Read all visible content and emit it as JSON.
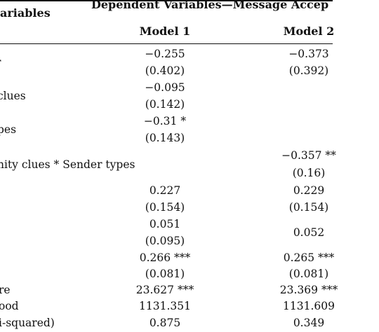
{
  "header": {
    "variables": "ariables",
    "dependent": "Dependent Variables—Message Accep",
    "model1": "Model 1",
    "model2": "Model 2"
  },
  "rows": [
    {
      "label": "",
      "m1": "−0.255",
      "m2": "−0.373"
    },
    {
      "label": "",
      "m1": "(0.402)",
      "m2": "(0.392)"
    },
    {
      "label": "clues",
      "m1": "−0.095",
      "m2": ""
    },
    {
      "label": "",
      "m1": "(0.142)",
      "m2": ""
    },
    {
      "label": "pes",
      "m1": "−0.31 *",
      "m2": ""
    },
    {
      "label": "",
      "m1": "(0.143)",
      "m2": ""
    },
    {
      "label": "nity clues * Sender types",
      "m1": "",
      "m2": "−0.357 **"
    },
    {
      "label": "",
      "m1": "",
      "m2": "(0.16)"
    },
    {
      "label": "",
      "m1": "0.227",
      "m2": "0.229"
    },
    {
      "label": "",
      "m1": "(0.154)",
      "m2": "(0.154)"
    },
    {
      "label": "",
      "m1": "0.051",
      "m2": ""
    },
    {
      "label": "",
      "m1": "(0.095)",
      "m2": "0.052"
    },
    {
      "label": "",
      "m1": "0.266 ***",
      "m2": "0.265 ***"
    },
    {
      "label": "",
      "m1": "(0.081)",
      "m2": "(0.081)"
    },
    {
      "label": "re",
      "m1": "23.627 ***",
      "m2": "23.369 ***"
    },
    {
      "label": "ood",
      "m1": "1131.351",
      "m2": "1131.609"
    },
    {
      "label": "i-squared)",
      "m1": "0.875",
      "m2": "0.349"
    }
  ]
}
